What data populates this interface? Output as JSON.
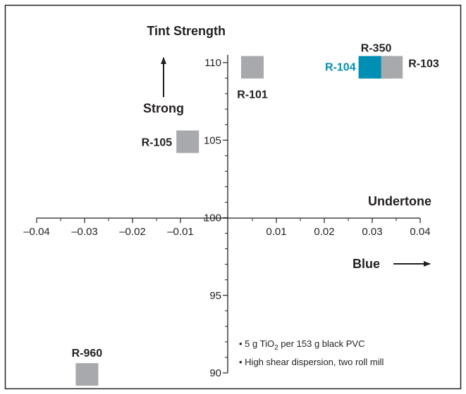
{
  "chart_data": {
    "type": "scatter",
    "title": "",
    "xlabel": "Undertone",
    "ylabel": "Tint Strength",
    "xlim": [
      -0.04,
      0.04
    ],
    "ylim": [
      90,
      110
    ],
    "x_ticks": [
      "–0.04",
      "–0.03",
      "–0.02",
      "–0.01",
      "0.01",
      "0.02",
      "0.03",
      "0.04"
    ],
    "y_ticks": [
      "90",
      "95",
      "100",
      "105",
      "110"
    ],
    "grid": false,
    "legend": "none",
    "points": [
      {
        "label": "R-101",
        "x": 0.005,
        "y": 109.7,
        "color": "#a7a9ac"
      },
      {
        "label": "R-350",
        "x": 0.032,
        "y": 109.7,
        "color": "#a7a9ac"
      },
      {
        "label": "R-103",
        "x": 0.034,
        "y": 109.7,
        "color": "#a7a9ac"
      },
      {
        "label": "R-104",
        "x": 0.0295,
        "y": 109.7,
        "color": "#008fb4"
      },
      {
        "label": "R-105",
        "x": -0.0085,
        "y": 104.9,
        "color": "#a7a9ac"
      },
      {
        "label": "R-960",
        "x": -0.0295,
        "y": 89.9,
        "color": "#a7a9ac"
      }
    ],
    "annotations": {
      "strong": "Strong",
      "blue": "Blue",
      "notes": [
        {
          "pre": "• 5 g TiO",
          "sub": "2",
          "post": " per 153 g black PVC"
        },
        {
          "pre": "• High shear dispersion, two roll mill",
          "sub": "",
          "post": ""
        }
      ]
    },
    "colors": {
      "accent": "#008fb4",
      "marker": "#a7a9ac",
      "text": "#231f20",
      "frame": "#231f20"
    }
  }
}
